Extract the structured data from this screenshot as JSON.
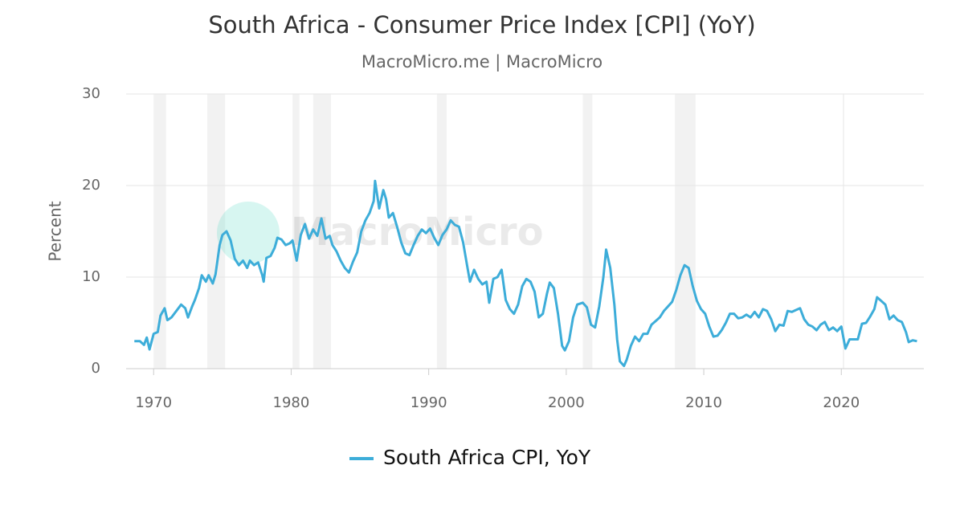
{
  "chart_data": {
    "type": "line",
    "title": "South Africa - Consumer Price Index [CPI] (YoY)",
    "subtitle": "MacroMicro.me | MacroMicro",
    "watermark": "MacroMicro",
    "y_label": "Percent",
    "xlim": [
      1968,
      2026
    ],
    "xticks": [
      1970,
      1980,
      1990,
      2000,
      2010,
      2020
    ],
    "ylim": [
      0,
      30
    ],
    "yticks": [
      0,
      10,
      20,
      30
    ],
    "grid": true,
    "shaded_periods": [
      [
        1970.0,
        1970.9
      ],
      [
        1973.9,
        1975.2
      ],
      [
        1980.1,
        1980.6
      ],
      [
        1981.6,
        1982.9
      ],
      [
        1990.6,
        1991.3
      ],
      [
        2001.2,
        2001.9
      ],
      [
        2007.9,
        2009.4
      ],
      [
        2020.1,
        2020.2
      ]
    ],
    "x": [
      1968.6,
      1969.0,
      1969.3,
      1969.5,
      1969.7,
      1970.0,
      1970.3,
      1970.5,
      1970.8,
      1971.0,
      1971.3,
      1971.7,
      1972.0,
      1972.3,
      1972.5,
      1972.8,
      1973.0,
      1973.3,
      1973.5,
      1973.8,
      1974.0,
      1974.3,
      1974.5,
      1974.8,
      1975.0,
      1975.3,
      1975.6,
      1975.9,
      1976.2,
      1976.5,
      1976.8,
      1977.0,
      1977.3,
      1977.6,
      1977.9,
      1978.0,
      1978.2,
      1978.5,
      1978.8,
      1979.0,
      1979.3,
      1979.6,
      1979.9,
      1980.1,
      1980.4,
      1980.7,
      1981.0,
      1981.3,
      1981.6,
      1981.9,
      1982.2,
      1982.5,
      1982.8,
      1983.0,
      1983.3,
      1983.6,
      1983.9,
      1984.2,
      1984.5,
      1984.8,
      1985.1,
      1985.4,
      1985.7,
      1986.0,
      1986.1,
      1986.4,
      1986.7,
      1986.9,
      1987.1,
      1987.4,
      1987.7,
      1988.0,
      1988.3,
      1988.6,
      1988.9,
      1989.2,
      1989.5,
      1989.8,
      1990.1,
      1990.4,
      1990.7,
      1991.0,
      1991.3,
      1991.6,
      1991.9,
      1992.2,
      1992.5,
      1992.8,
      1993.0,
      1993.3,
      1993.6,
      1993.9,
      1994.2,
      1994.4,
      1994.7,
      1995.0,
      1995.3,
      1995.6,
      1995.9,
      1996.2,
      1996.5,
      1996.8,
      1997.1,
      1997.4,
      1997.7,
      1998.0,
      1998.3,
      1998.6,
      1998.8,
      1999.1,
      1999.4,
      1999.7,
      1999.9,
      2000.2,
      2000.5,
      2000.8,
      2001.2,
      2001.5,
      2001.8,
      2002.1,
      2002.4,
      2002.7,
      2002.9,
      2003.2,
      2003.5,
      2003.7,
      2003.9,
      2004.2,
      2004.4,
      2004.7,
      2005.0,
      2005.3,
      2005.6,
      2005.9,
      2006.2,
      2006.5,
      2006.8,
      2007.1,
      2007.4,
      2007.7,
      2008.0,
      2008.3,
      2008.6,
      2008.9,
      2009.2,
      2009.5,
      2009.8,
      2010.1,
      2010.4,
      2010.7,
      2011.0,
      2011.3,
      2011.6,
      2011.9,
      2012.2,
      2012.5,
      2012.8,
      2013.1,
      2013.4,
      2013.7,
      2014.0,
      2014.3,
      2014.6,
      2014.9,
      2015.2,
      2015.5,
      2015.8,
      2016.1,
      2016.4,
      2016.7,
      2017.0,
      2017.3,
      2017.6,
      2017.9,
      2018.2,
      2018.5,
      2018.8,
      2019.1,
      2019.4,
      2019.7,
      2020.0,
      2020.3,
      2020.6,
      2020.9,
      2021.2,
      2021.5,
      2021.8,
      2022.1,
      2022.4,
      2022.6,
      2022.9,
      2023.2,
      2023.5,
      2023.8,
      2024.1,
      2024.4,
      2024.7,
      2024.9,
      2025.2,
      2025.5
    ],
    "series": [
      {
        "name": "South Africa CPI, YoY",
        "color": "#3dadd9",
        "values": [
          3.0,
          3.0,
          2.6,
          3.4,
          2.1,
          3.8,
          4.0,
          5.8,
          6.6,
          5.3,
          5.6,
          6.4,
          7.0,
          6.6,
          5.6,
          6.8,
          7.5,
          8.8,
          10.2,
          9.5,
          10.2,
          9.3,
          10.3,
          13.5,
          14.6,
          15.0,
          14.0,
          12.0,
          11.3,
          11.8,
          11.0,
          11.8,
          11.3,
          11.6,
          10.2,
          9.5,
          12.1,
          12.3,
          13.2,
          14.3,
          14.1,
          13.5,
          13.7,
          14.0,
          11.8,
          14.6,
          15.8,
          14.2,
          15.2,
          14.5,
          16.4,
          14.2,
          14.5,
          13.5,
          12.8,
          11.8,
          11.0,
          10.5,
          11.7,
          12.7,
          15.0,
          16.2,
          17.0,
          18.3,
          20.5,
          17.5,
          19.5,
          18.5,
          16.5,
          17.0,
          15.5,
          13.8,
          12.6,
          12.4,
          13.5,
          14.5,
          15.2,
          14.8,
          15.3,
          14.3,
          13.5,
          14.6,
          15.2,
          16.2,
          15.7,
          15.5,
          13.8,
          11.2,
          9.5,
          10.8,
          9.8,
          9.2,
          9.5,
          7.2,
          9.8,
          10.0,
          10.8,
          7.5,
          6.5,
          6.0,
          7.0,
          9.0,
          9.8,
          9.5,
          8.4,
          5.6,
          6.0,
          8.2,
          9.4,
          8.8,
          6.0,
          2.5,
          2.0,
          3.0,
          5.6,
          7.0,
          7.2,
          6.7,
          4.8,
          4.5,
          6.8,
          10.0,
          13.0,
          11.0,
          7.0,
          3.2,
          0.8,
          0.3,
          1.0,
          2.5,
          3.5,
          3.0,
          3.8,
          3.8,
          4.8,
          5.2,
          5.6,
          6.3,
          6.8,
          7.3,
          8.6,
          10.2,
          11.3,
          11.0,
          9.0,
          7.4,
          6.5,
          6.0,
          4.6,
          3.5,
          3.6,
          4.2,
          5.0,
          6.0,
          6.0,
          5.5,
          5.6,
          5.9,
          5.6,
          6.2,
          5.6,
          6.5,
          6.3,
          5.4,
          4.1,
          4.8,
          4.7,
          6.3,
          6.2,
          6.4,
          6.6,
          5.4,
          4.8,
          4.6,
          4.2,
          4.8,
          5.1,
          4.2,
          4.5,
          4.1,
          4.6,
          2.2,
          3.2,
          3.2,
          3.2,
          4.9,
          5.0,
          5.7,
          6.5,
          7.8,
          7.4,
          7.0,
          5.4,
          5.8,
          5.3,
          5.1,
          4.0,
          2.9,
          3.1,
          3.0
        ]
      }
    ]
  }
}
